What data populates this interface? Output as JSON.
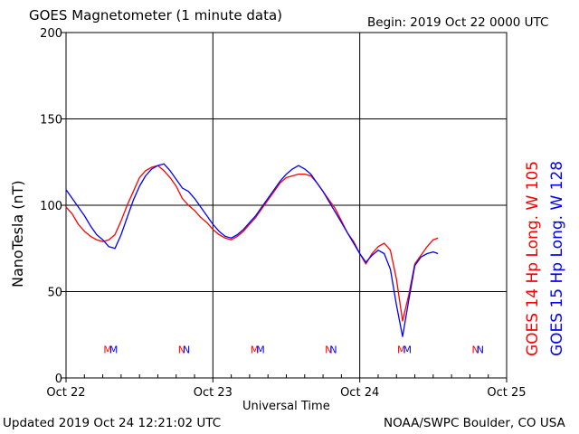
{
  "header": {
    "title": "GOES Magnetometer (1 minute data)",
    "begin": "Begin:  2019 Oct 22 0000 UTC"
  },
  "footer": {
    "updated": "Updated 2019 Oct 24 12:21:02 UTC",
    "credit": "NOAA/SWPC Boulder, CO USA"
  },
  "colors": {
    "goes14": "#ff0000",
    "goes15": "#0000ff",
    "grid": "#000000"
  },
  "chart_data": {
    "type": "line",
    "title": "GOES Magnetometer (1 minute data)",
    "xlabel": "Universal Time",
    "ylabel": "NanoTesla (nT)",
    "ylim": [
      0,
      200
    ],
    "xlim": [
      0,
      72
    ],
    "x_unit": "hours since 2019 Oct 22 0000 UTC",
    "yticks": [
      0,
      50,
      100,
      150,
      200
    ],
    "xticks": [
      {
        "x": 0,
        "label": "Oct 22"
      },
      {
        "x": 24,
        "label": "Oct 23"
      },
      {
        "x": 48,
        "label": "Oct 24"
      },
      {
        "x": 72,
        "label": "Oct 25"
      }
    ],
    "grid": true,
    "legend_position": "right (vertical)",
    "series": [
      {
        "name": "GOES 14 Hp  Long. W 105",
        "color": "#ff0000",
        "x": [
          0,
          1,
          2,
          3,
          4,
          5,
          6,
          7,
          8,
          9,
          10,
          11,
          12,
          13,
          14,
          15,
          16,
          17,
          18,
          19,
          20,
          21,
          22,
          23,
          24,
          25,
          26,
          27,
          28,
          29,
          30,
          31,
          32,
          33,
          34,
          35,
          36,
          37,
          38,
          39,
          40,
          41,
          42,
          43,
          44,
          45,
          46,
          47,
          48,
          49,
          50,
          51,
          52,
          53,
          54,
          55,
          56,
          57,
          58,
          59,
          60,
          60.8
        ],
        "y": [
          99,
          95,
          89,
          85,
          82,
          80,
          79,
          80,
          83,
          91,
          100,
          108,
          116,
          120,
          122,
          123,
          120,
          116,
          111,
          104,
          100,
          97,
          93,
          90,
          86,
          83,
          81,
          80,
          82,
          85,
          89,
          93,
          98,
          103,
          108,
          113,
          116,
          117,
          118,
          118,
          117,
          113,
          108,
          103,
          98,
          91,
          84,
          79,
          72,
          66,
          72,
          76,
          78,
          74,
          57,
          33,
          48,
          66,
          71,
          76,
          80,
          81
        ]
      },
      {
        "name": "GOES 15 Hp  Long. W 128",
        "color": "#0000ff",
        "x": [
          0,
          1,
          2,
          3,
          4,
          5,
          6,
          7,
          8,
          9,
          10,
          11,
          12,
          13,
          14,
          15,
          16,
          17,
          18,
          19,
          20,
          21,
          22,
          23,
          24,
          25,
          26,
          27,
          28,
          29,
          30,
          31,
          32,
          33,
          34,
          35,
          36,
          37,
          38,
          39,
          40,
          41,
          42,
          43,
          44,
          45,
          46,
          47,
          48,
          49,
          50,
          51,
          52,
          53,
          54,
          55,
          56,
          57,
          58,
          59,
          60,
          60.8
        ],
        "y": [
          109,
          104,
          99,
          94,
          88,
          83,
          80,
          76,
          75,
          83,
          93,
          103,
          111,
          117,
          121,
          123,
          124,
          120,
          115,
          110,
          108,
          104,
          99,
          94,
          89,
          85,
          82,
          81,
          83,
          86,
          90,
          94,
          99,
          104,
          109,
          114,
          118,
          121,
          123,
          121,
          118,
          113,
          108,
          102,
          96,
          90,
          84,
          78,
          72,
          67,
          71,
          74,
          72,
          63,
          42,
          24,
          45,
          65,
          70,
          72,
          73,
          72
        ]
      }
    ],
    "annotations": [
      {
        "x": 7.3,
        "label": "MM"
      },
      {
        "x": 19.3,
        "label": "NN"
      },
      {
        "x": 31.3,
        "label": "MM"
      },
      {
        "x": 43.3,
        "label": "NN"
      },
      {
        "x": 55.3,
        "label": "MM"
      },
      {
        "x": 67.3,
        "label": "NN"
      }
    ],
    "annotation_y": 17
  }
}
